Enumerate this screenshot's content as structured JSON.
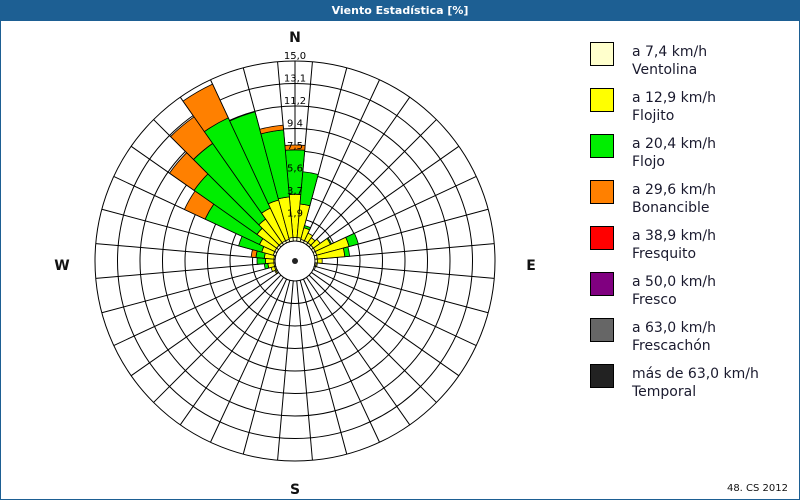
{
  "window": {
    "title": "Viento Estadística [%]",
    "footer": "48. CS 2012",
    "title_bar_color": "#1d5f93"
  },
  "compass": {
    "north": "N",
    "east": "E",
    "south": "S",
    "west": "W"
  },
  "legend": [
    {
      "speed": "a 7,4 km/h",
      "name": "Ventolina",
      "color": "#ffffcc"
    },
    {
      "speed": "a 12,9 km/h",
      "name": "Flojito",
      "color": "#ffff00"
    },
    {
      "speed": "a 20,4 km/h",
      "name": "Flojo",
      "color": "#00ee00"
    },
    {
      "speed": "a 29,6 km/h",
      "name": "Bonancible",
      "color": "#ff8000"
    },
    {
      "speed": "a 38,9 km/h",
      "name": "Fresquito",
      "color": "#ff0000"
    },
    {
      "speed": "a 50,0 km/h",
      "name": "Fresco",
      "color": "#800080"
    },
    {
      "speed": "a 63,0 km/h",
      "name": "Frescachón",
      "color": "#666666"
    },
    {
      "speed": "más de 63,0 km/h",
      "name": "Temporal",
      "color": "#222222"
    }
  ],
  "chart_data": {
    "type": "wind-rose",
    "title": "Viento Estadística [%]",
    "units": "%",
    "radial_ticks": [
      "1,9",
      "3,7",
      "5,6",
      "7,5",
      "9,4",
      "11,2",
      "13,1",
      "15,0"
    ],
    "radial_tick_values": [
      1.875,
      3.75,
      5.625,
      7.5,
      9.375,
      11.25,
      13.125,
      15.0
    ],
    "rmax": 15.0,
    "sector_width_deg": 10,
    "direction_labels": [
      "N",
      "E",
      "S",
      "W"
    ],
    "series_names": [
      "Ventolina",
      "Flojito",
      "Flojo",
      "Bonancible",
      "Fresquito",
      "Fresco",
      "Frescachón",
      "Temporal"
    ],
    "series_colors": [
      "#ffffcc",
      "#ffff00",
      "#00ee00",
      "#ff8000",
      "#ff0000",
      "#800080",
      "#666666",
      "#222222"
    ],
    "sectors": [
      {
        "dir": 0,
        "cum": [
          0.3,
          3.9,
          7.6,
          8.0
        ]
      },
      {
        "dir": 10,
        "cum": [
          0.3,
          3.1,
          5.8,
          5.8
        ]
      },
      {
        "dir": 20,
        "cum": [
          0.2,
          1.2,
          1.4,
          1.4
        ]
      },
      {
        "dir": 30,
        "cum": [
          0.2,
          0.9,
          0.9,
          0.9
        ]
      },
      {
        "dir": 40,
        "cum": [
          0.2,
          0.7,
          0.7,
          0.7
        ]
      },
      {
        "dir": 50,
        "cum": [
          0.2,
          0.9,
          0.9,
          0.9
        ]
      },
      {
        "dir": 60,
        "cum": [
          0.2,
          1.6,
          1.7,
          1.7
        ]
      },
      {
        "dir": 70,
        "cum": [
          0.2,
          3.0,
          3.8,
          3.8
        ]
      },
      {
        "dir": 80,
        "cum": [
          0.2,
          2.5,
          2.9,
          2.9
        ]
      },
      {
        "dir": 90,
        "cum": [
          0.2,
          0.6,
          0.6,
          0.6
        ]
      },
      {
        "dir": 100,
        "cum": [
          0.1,
          0.2,
          0.2,
          0.2
        ]
      },
      {
        "dir": 110,
        "cum": [
          0.1,
          0.1,
          0.1,
          0.1
        ]
      },
      {
        "dir": 120,
        "cum": [
          0.0,
          0.0,
          0.0,
          0.0
        ]
      },
      {
        "dir": 130,
        "cum": [
          0.0,
          0.0,
          0.0,
          0.0
        ]
      },
      {
        "dir": 140,
        "cum": [
          0.0,
          0.0,
          0.0,
          0.0
        ]
      },
      {
        "dir": 150,
        "cum": [
          0.0,
          0.0,
          0.0,
          0.0
        ]
      },
      {
        "dir": 160,
        "cum": [
          0.0,
          0.0,
          0.0,
          0.0
        ]
      },
      {
        "dir": 170,
        "cum": [
          0.0,
          0.0,
          0.0,
          0.0
        ]
      },
      {
        "dir": 180,
        "cum": [
          0.0,
          0.0,
          0.0,
          0.0
        ]
      },
      {
        "dir": 190,
        "cum": [
          0.0,
          0.0,
          0.0,
          0.0
        ]
      },
      {
        "dir": 200,
        "cum": [
          0.0,
          0.0,
          0.0,
          0.0
        ]
      },
      {
        "dir": 210,
        "cum": [
          0.0,
          0.0,
          0.0,
          0.0
        ]
      },
      {
        "dir": 220,
        "cum": [
          0.0,
          0.0,
          0.0,
          0.0
        ]
      },
      {
        "dir": 230,
        "cum": [
          0.0,
          0.0,
          0.0,
          0.0
        ]
      },
      {
        "dir": 240,
        "cum": [
          0.1,
          0.2,
          0.2,
          0.2
        ]
      },
      {
        "dir": 250,
        "cum": [
          0.1,
          0.4,
          0.4,
          0.4
        ]
      },
      {
        "dir": 260,
        "cum": [
          0.1,
          0.6,
          0.9,
          0.9
        ]
      },
      {
        "dir": 270,
        "cum": [
          0.1,
          0.8,
          1.5,
          1.5
        ]
      },
      {
        "dir": 280,
        "cum": [
          0.1,
          0.9,
          1.6,
          2.0
        ]
      },
      {
        "dir": 290,
        "cum": [
          0.2,
          1.2,
          3.2,
          3.2
        ]
      },
      {
        "dir": 300,
        "cum": [
          0.2,
          1.6,
          6.6,
          8.5
        ]
      },
      {
        "dir": 310,
        "cum": [
          0.2,
          2.2,
          8.6,
          11.1
        ]
      },
      {
        "dir": 320,
        "cum": [
          0.2,
          2.6,
          10.3,
          13.0
        ]
      },
      {
        "dir": 330,
        "cum": [
          0.2,
          3.2,
          11.5,
          14.6
        ]
      },
      {
        "dir": 340,
        "cum": [
          0.2,
          3.6,
          11.2,
          11.2
        ]
      },
      {
        "dir": 350,
        "cum": [
          0.3,
          3.7,
          9.3,
          9.7
        ]
      }
    ]
  }
}
